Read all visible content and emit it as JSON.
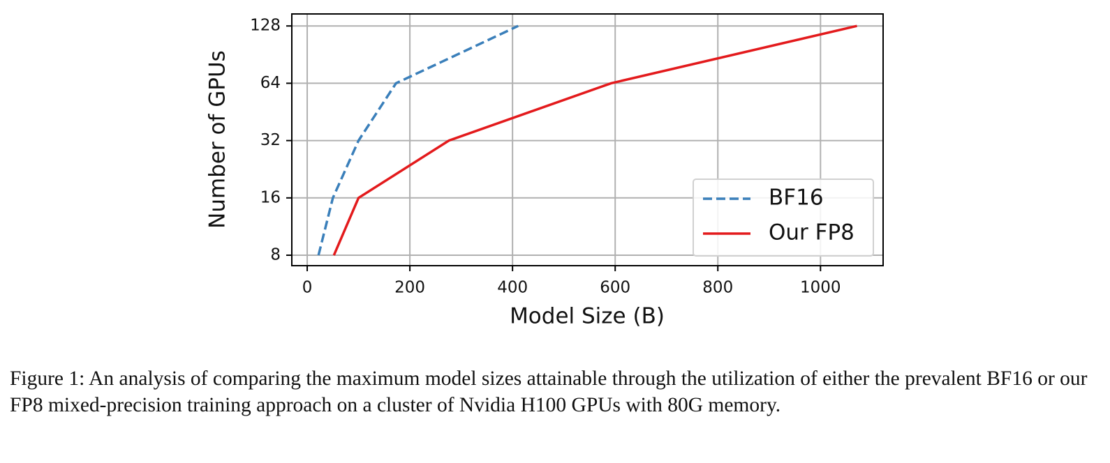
{
  "chart_data": {
    "type": "line",
    "xlabel": "Model Size (B)",
    "ylabel": "Number of GPUs",
    "series": [
      {
        "name": "BF16",
        "color": "#3a7fba",
        "linestyle": "dashed",
        "x": [
          22,
          50,
          100,
          173,
          411
        ],
        "values": [
          8,
          16,
          32,
          64,
          128
        ]
      },
      {
        "name": "Our FP8",
        "color": "#e31a1c",
        "linestyle": "solid",
        "x": [
          52,
          100,
          276,
          592,
          1071
        ],
        "values": [
          8,
          16,
          32,
          64,
          128
        ]
      }
    ],
    "xlim": [
      -30,
      1122
    ],
    "ylim": [
      7.05,
      148
    ],
    "yscale": "log",
    "xticks": [
      0,
      200,
      400,
      600,
      800,
      1000
    ],
    "yticks": [
      8,
      16,
      32,
      64,
      128
    ],
    "grid": true,
    "legend": "lower right"
  },
  "caption": "Figure 1: An analysis of comparing the maximum model sizes attainable through the utilization of either the prevalent BF16 or our FP8 mixed-precision training approach on a cluster of Nvidia H100 GPUs with 80G memory."
}
